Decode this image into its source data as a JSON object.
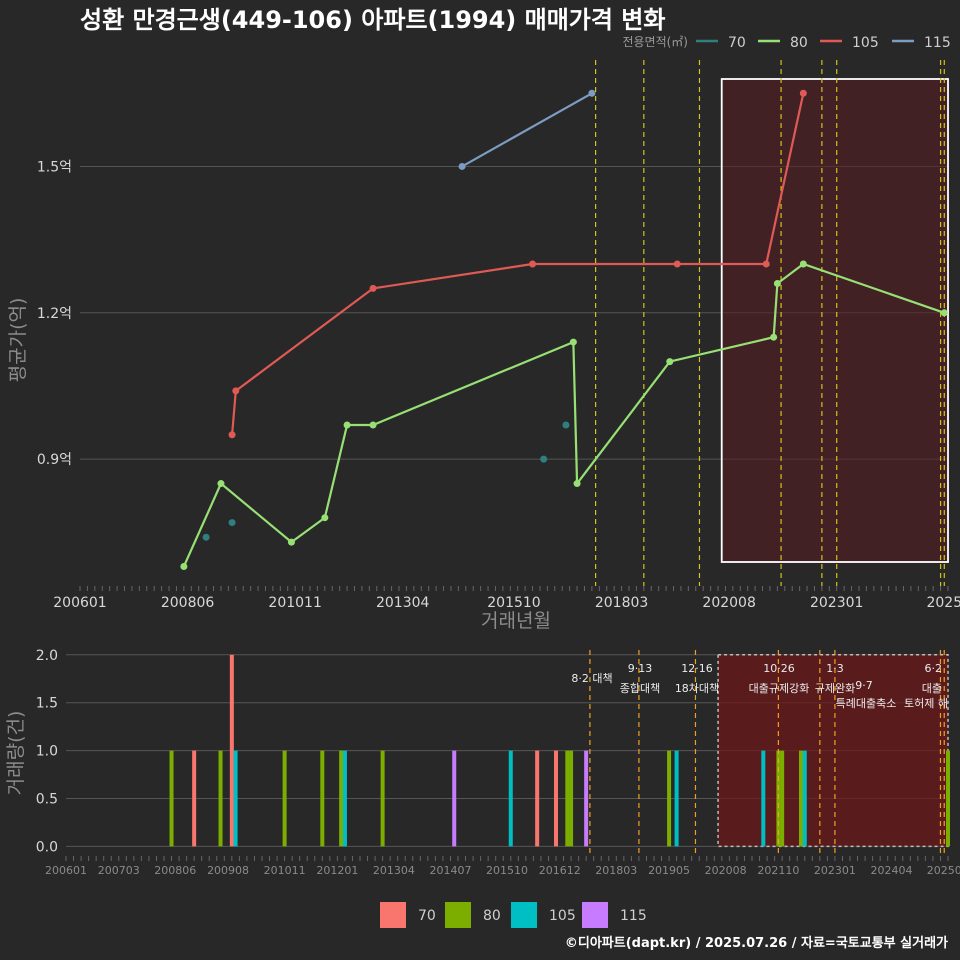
{
  "title": "성환 만경근생(449-106) 아파트(1994) 매매가격 변화",
  "caption": "©디아파트(dapt.kr) / 2025.07.26 / 자료=국토교통부 실거래가",
  "colors": {
    "70": "#2f7f80",
    "80": "#97e074",
    "105": "#e05a55",
    "115": "#7d9cc2"
  },
  "bar_colors": {
    "70": "#f8766d",
    "80": "#7cae00",
    "105": "#00bfc4",
    "115": "#c77cff"
  },
  "legend_top": {
    "title": "전용면적(㎡)",
    "items": [
      "70",
      "80",
      "105",
      "115"
    ]
  },
  "legend_bottom": {
    "items": [
      "70",
      "80",
      "105",
      "115"
    ]
  },
  "chart_data": [
    {
      "type": "line",
      "title": "성환 만경근생(449-106) 아파트(1994) 매매가격 변화",
      "xlabel": "거래년월",
      "ylabel": "평균가(억)",
      "x_ticks": [
        "200601",
        "200806",
        "201011",
        "201304",
        "201510",
        "201803",
        "202008",
        "202301",
        "2025"
      ],
      "y_ticks": [
        "0.9억",
        "1.2억",
        "1.5억"
      ],
      "y_tick_values": [
        0.9,
        1.2,
        1.5
      ],
      "ylim": [
        0.64,
        1.71
      ],
      "grid": true,
      "legend_position": "top-right",
      "highlight_range": [
        "2020-06",
        "2025-07"
      ],
      "policy_lines": [
        "2017-08",
        "2018-09",
        "2019-12",
        "2021-10",
        "2022-09",
        "2023-01",
        "2025-05",
        "2025-06"
      ],
      "series": [
        {
          "name": "70",
          "points": [
            [
              "2008-11",
              0.74
            ],
            [
              "2009-06",
              0.77
            ],
            [
              "2016-06",
              0.9
            ],
            [
              "2016-12",
              0.97
            ]
          ]
        },
        {
          "name": "80",
          "points": [
            [
              "2008-05",
              0.68
            ],
            [
              "2009-03",
              0.85
            ],
            [
              "2010-10",
              0.73
            ],
            [
              "2011-07",
              0.78
            ],
            [
              "2012-01",
              0.97
            ],
            [
              "2012-08",
              0.97
            ],
            [
              "2017-02",
              1.14
            ],
            [
              "2017-03",
              0.85
            ],
            [
              "2019-04",
              1.1
            ],
            [
              "2021-08",
              1.15
            ],
            [
              "2021-09",
              1.26
            ],
            [
              "2022-04",
              1.3
            ],
            [
              "2025-06",
              1.2
            ]
          ]
        },
        {
          "name": "105",
          "points": [
            [
              "2009-06",
              0.95
            ],
            [
              "2009-07",
              1.04
            ],
            [
              "2012-08",
              1.25
            ],
            [
              "2016-03",
              1.3
            ],
            [
              "2019-06",
              1.3
            ],
            [
              "2021-06",
              1.3
            ],
            [
              "2022-04",
              1.65
            ]
          ]
        },
        {
          "name": "115",
          "points": [
            [
              "2014-08",
              1.5
            ],
            [
              "2017-07",
              1.65
            ]
          ]
        }
      ]
    },
    {
      "type": "bar",
      "xlabel": "",
      "ylabel": "거래량(건)",
      "x_ticks": [
        "200601",
        "200703",
        "200806",
        "200908",
        "201011",
        "201201",
        "201304",
        "201407",
        "201510",
        "201612",
        "201803",
        "201905",
        "202008",
        "202110",
        "202301",
        "202404",
        "20250"
      ],
      "y_ticks": [
        "0.0",
        "0.5",
        "1.0",
        "1.5",
        "2.0"
      ],
      "y_tick_values": [
        0,
        0.5,
        1.0,
        1.5,
        2.0
      ],
      "ylim": [
        -0.1,
        2.05
      ],
      "highlight_range": [
        "2020-06",
        "2025-07"
      ],
      "annotations": [
        {
          "date": "2017-08",
          "lines": [
            "8·2 대책"
          ]
        },
        {
          "date": "2018-09",
          "lines": [
            "9·13",
            "종합대책"
          ]
        },
        {
          "date": "2019-12",
          "lines": [
            "12·16",
            "18차대책"
          ]
        },
        {
          "date": "2021-10",
          "lines": [
            "10·26",
            "대출규제강화"
          ]
        },
        {
          "date": "2023-01",
          "lines": [
            "1·3",
            "규제완화"
          ]
        },
        {
          "date": "2022-09",
          "lines": [
            "9·7",
            "특례대출축소"
          ]
        },
        {
          "date": "2024-11",
          "lines": [
            "토허제 해"
          ]
        },
        {
          "date": "2025-06",
          "lines": [
            "6·2",
            "대출"
          ]
        }
      ],
      "bars": [
        {
          "date": "2008-05",
          "series": "80",
          "value": 1
        },
        {
          "date": "2008-11",
          "series": "70",
          "value": 1
        },
        {
          "date": "2009-06",
          "series": "80",
          "value": 1
        },
        {
          "date": "2009-09",
          "series": "70",
          "value": 2
        },
        {
          "date": "2009-10",
          "series": "105",
          "value": 1
        },
        {
          "date": "2010-11",
          "series": "80",
          "value": 1
        },
        {
          "date": "2011-09",
          "series": "80",
          "value": 1
        },
        {
          "date": "2012-02",
          "series": "80",
          "value": 1
        },
        {
          "date": "2012-03",
          "series": "105",
          "value": 1
        },
        {
          "date": "2013-01",
          "series": "80",
          "value": 1
        },
        {
          "date": "2014-08",
          "series": "115",
          "value": 1
        },
        {
          "date": "2015-11",
          "series": "105",
          "value": 1
        },
        {
          "date": "2016-06",
          "series": "70",
          "value": 1
        },
        {
          "date": "2016-11",
          "series": "70",
          "value": 1
        },
        {
          "date": "2017-02",
          "series": "80",
          "value": 1
        },
        {
          "date": "2017-03",
          "series": "80",
          "value": 1
        },
        {
          "date": "2017-07",
          "series": "115",
          "value": 1
        },
        {
          "date": "2019-05",
          "series": "80",
          "value": 1
        },
        {
          "date": "2019-07",
          "series": "105",
          "value": 1
        },
        {
          "date": "2021-06",
          "series": "105",
          "value": 1
        },
        {
          "date": "2021-10",
          "series": "80",
          "value": 1
        },
        {
          "date": "2021-11",
          "series": "80",
          "value": 1
        },
        {
          "date": "2022-04",
          "series": "80",
          "value": 1
        },
        {
          "date": "2022-05",
          "series": "105",
          "value": 1
        },
        {
          "date": "2025-07",
          "series": "80",
          "value": 1
        }
      ]
    }
  ]
}
